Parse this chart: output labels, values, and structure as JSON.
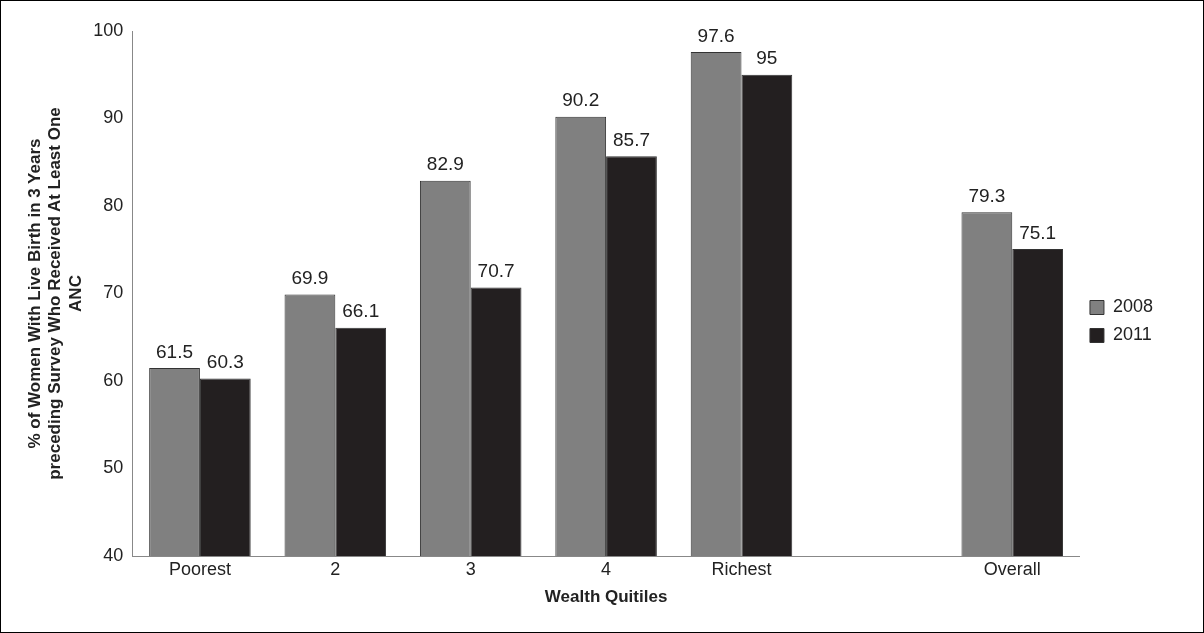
{
  "chart_data": {
    "type": "bar",
    "xlabel": "Wealth Quitiles",
    "ylabel": "% of Women With Live Birth in 3 Years preceding Survey Who Received At Least One ANC",
    "categories": [
      "Poorest",
      "2",
      "3",
      "4",
      "Richest",
      null,
      "Overall"
    ],
    "series": [
      {
        "name": "2008",
        "color": "#808080",
        "values": [
          61.5,
          69.9,
          82.9,
          90.2,
          97.6,
          null,
          79.3
        ]
      },
      {
        "name": "2011",
        "color": "#231f20",
        "values": [
          60.3,
          66.1,
          70.7,
          85.7,
          95,
          null,
          75.1
        ]
      }
    ],
    "ylim": [
      40,
      100
    ],
    "yticks": [
      40,
      50,
      60,
      70,
      80,
      90,
      100
    ],
    "data_labels": true,
    "legend": "right",
    "grid": false
  }
}
